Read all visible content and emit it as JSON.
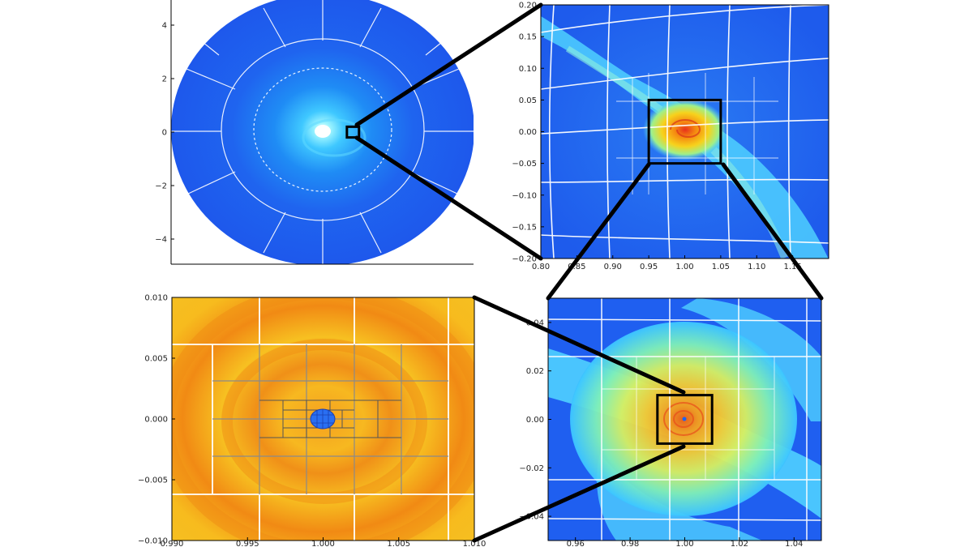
{
  "colors": {
    "disk_blue": "#1f5ff0",
    "disk_cyan": "#3fd0ff",
    "disk_green": "#7ff0b0",
    "disk_yellow": "#f7c21c",
    "disk_orange": "#f08a10",
    "grid_line": "#ffffff",
    "connector": "#000000"
  },
  "chart_data": [
    {
      "id": "panel-top-left",
      "type": "heatmap",
      "title": "",
      "xlabel": "",
      "ylabel": "",
      "xlim": [
        -5,
        5
      ],
      "ylim": [
        -5,
        5
      ],
      "yticks": [
        {
          "v": 4,
          "label": "4"
        },
        {
          "v": 2,
          "label": "2"
        },
        {
          "v": 0,
          "label": "0"
        },
        {
          "v": -2,
          "label": "−2"
        },
        {
          "v": -4,
          "label": "−4"
        }
      ],
      "xticks": [],
      "zoom_box": {
        "x": [
          0.8,
          1.2
        ],
        "y": [
          -0.2,
          0.2
        ]
      }
    },
    {
      "id": "panel-top-right",
      "type": "heatmap",
      "title": "",
      "xlabel": "",
      "ylabel": "",
      "xlim": [
        0.8,
        1.2
      ],
      "ylim": [
        -0.2,
        0.2
      ],
      "yticks": [
        {
          "v": 0.2,
          "label": "0.20"
        },
        {
          "v": 0.15,
          "label": "0.15"
        },
        {
          "v": 0.1,
          "label": "0.10"
        },
        {
          "v": 0.05,
          "label": "0.05"
        },
        {
          "v": 0.0,
          "label": "0.00"
        },
        {
          "v": -0.05,
          "label": "−0.05"
        },
        {
          "v": -0.1,
          "label": "−0.10"
        },
        {
          "v": -0.15,
          "label": "−0.15"
        },
        {
          "v": -0.2,
          "label": "−0.20"
        }
      ],
      "xticks": [
        {
          "v": 0.8,
          "label": "0.80"
        },
        {
          "v": 0.85,
          "label": "0.85"
        },
        {
          "v": 0.9,
          "label": "0.90"
        },
        {
          "v": 0.95,
          "label": "0.95"
        },
        {
          "v": 1.0,
          "label": "1.00"
        },
        {
          "v": 1.05,
          "label": "1.05"
        },
        {
          "v": 1.1,
          "label": "1.10"
        },
        {
          "v": 1.15,
          "label": "1.15"
        }
      ],
      "zoom_box": {
        "x": [
          0.95,
          1.05
        ],
        "y": [
          -0.05,
          0.05
        ]
      }
    },
    {
      "id": "panel-bottom-right",
      "type": "heatmap",
      "title": "",
      "xlabel": "",
      "ylabel": "",
      "xlim": [
        0.95,
        1.05
      ],
      "ylim": [
        -0.05,
        0.05
      ],
      "yticks": [
        {
          "v": 0.04,
          "label": "0.04"
        },
        {
          "v": 0.02,
          "label": "0.02"
        },
        {
          "v": 0.0,
          "label": "0.00"
        },
        {
          "v": -0.02,
          "label": "−0.02"
        },
        {
          "v": -0.04,
          "label": "−0.04"
        }
      ],
      "xticks": [
        {
          "v": 0.96,
          "label": "0.96"
        },
        {
          "v": 0.98,
          "label": "0.98"
        },
        {
          "v": 1.0,
          "label": "1.00"
        },
        {
          "v": 1.02,
          "label": "1.02"
        },
        {
          "v": 1.04,
          "label": "1.04"
        }
      ],
      "zoom_box": {
        "x": [
          0.99,
          1.01
        ],
        "y": [
          -0.01,
          0.01
        ]
      }
    },
    {
      "id": "panel-bottom-left",
      "type": "heatmap",
      "title": "",
      "xlabel": "",
      "ylabel": "",
      "xlim": [
        0.99,
        1.01
      ],
      "ylim": [
        -0.01,
        0.01
      ],
      "yticks": [
        {
          "v": 0.01,
          "label": "0.010"
        },
        {
          "v": 0.005,
          "label": "0.005"
        },
        {
          "v": 0.0,
          "label": "0.000"
        },
        {
          "v": -0.005,
          "label": "−0.005"
        },
        {
          "v": -0.01,
          "label": "−0.010"
        }
      ],
      "xticks": [
        {
          "v": 0.99,
          "label": "0.990"
        },
        {
          "v": 0.995,
          "label": "0.995"
        },
        {
          "v": 1.0,
          "label": "1.000"
        },
        {
          "v": 1.005,
          "label": "1.005"
        },
        {
          "v": 1.01,
          "label": "1.010"
        }
      ]
    }
  ]
}
